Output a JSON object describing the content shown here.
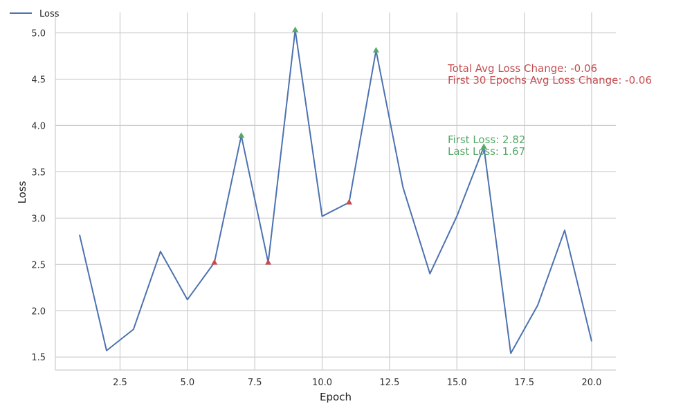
{
  "chart_data": {
    "type": "line",
    "title": "",
    "xlabel": "Epoch",
    "ylabel": "Loss",
    "xlim": [
      0.1,
      20.9
    ],
    "ylim": [
      1.36,
      5.22
    ],
    "xticks": [
      2.5,
      5.0,
      7.5,
      10.0,
      12.5,
      15.0,
      17.5,
      20.0
    ],
    "xtick_labels": [
      "2.5",
      "5.0",
      "7.5",
      "10.0",
      "12.5",
      "15.0",
      "17.5",
      "20.0"
    ],
    "yticks": [
      1.5,
      2.0,
      2.5,
      3.0,
      3.5,
      4.0,
      4.5,
      5.0
    ],
    "ytick_labels": [
      "1.5",
      "2.0",
      "2.5",
      "3.0",
      "3.5",
      "4.0",
      "4.5",
      "5.0"
    ],
    "grid": true,
    "legend_position": "top-left",
    "series": [
      {
        "name": "Loss",
        "color": "#4c72b0",
        "x": [
          1,
          2,
          3,
          4,
          5,
          6,
          7,
          8,
          9,
          10,
          11,
          12,
          13,
          14,
          15,
          16,
          17,
          18,
          19,
          20
        ],
        "y": [
          2.82,
          1.57,
          1.8,
          2.64,
          2.12,
          2.52,
          3.89,
          2.52,
          5.03,
          3.02,
          3.17,
          4.81,
          3.33,
          2.4,
          3.02,
          3.77,
          1.54,
          2.06,
          2.87,
          1.67
        ]
      }
    ],
    "peaks": {
      "color": "#55a868",
      "marker": "triangle-up",
      "x": [
        7,
        9,
        12,
        16
      ],
      "y": [
        3.89,
        5.03,
        4.81,
        3.77
      ]
    },
    "troughs": {
      "color": "#c44e52",
      "marker": "triangle-up",
      "x": [
        6,
        8,
        11
      ],
      "y": [
        2.52,
        2.52,
        3.17
      ]
    },
    "annotations": [
      {
        "text": "Total Avg Loss Change: -0.06",
        "color": "#c44e52"
      },
      {
        "text": "First 30 Epochs Avg Loss Change: -0.06",
        "color": "#c44e52"
      },
      {
        "text": "First Loss: 2.82",
        "color": "#55a868"
      },
      {
        "text": "Last Loss: 1.67",
        "color": "#55a868"
      }
    ]
  }
}
